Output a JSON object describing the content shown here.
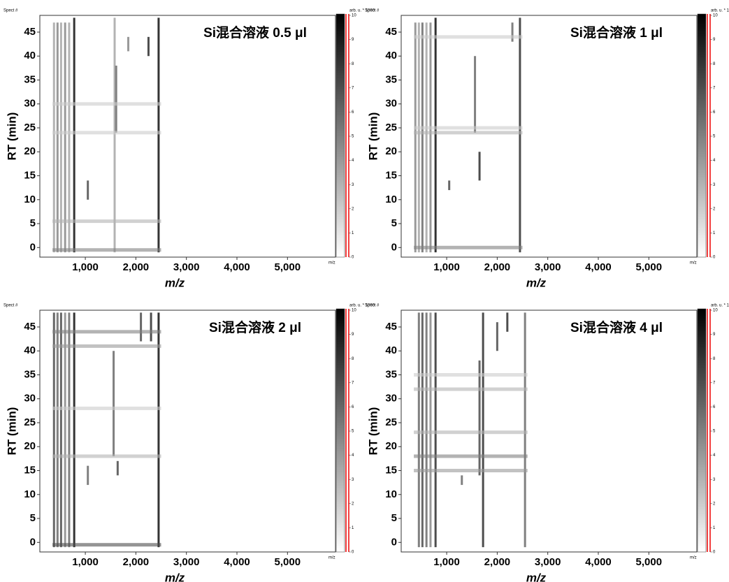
{
  "chart_data": [
    {
      "type": "heatmap",
      "title": "Si混合溶液 0.5 μl",
      "xlabel": "m/z",
      "ylabel": "RT (min)",
      "corner_label": "Spect #",
      "colorbar_label": "arb. u. * 1000",
      "colorbar_axis_label": "m/z",
      "xlim": [
        100,
        5950
      ],
      "ylim": [
        -2,
        48.5
      ],
      "clim": [
        0,
        10
      ],
      "xticks": [
        {
          "value": 1000,
          "label": "1,000"
        },
        {
          "value": 2000,
          "label": "2,000"
        },
        {
          "value": 3000,
          "label": "3,000"
        },
        {
          "value": 4000,
          "label": "4,000"
        },
        {
          "value": 5000,
          "label": "5,000"
        }
      ],
      "yticks": [
        0,
        5,
        10,
        15,
        20,
        25,
        30,
        35,
        40,
        45
      ],
      "cticks": [
        0,
        1,
        2,
        3,
        4,
        5,
        6,
        7,
        8,
        9,
        10
      ],
      "streaks": {
        "mz": [
          380,
          450,
          520,
          600,
          680,
          780,
          1580,
          1610,
          2450,
          1050,
          1850,
          2250
        ],
        "rt_from": [
          -1,
          -1,
          -1,
          -1,
          -1,
          -1,
          -1,
          24,
          -1,
          10,
          41,
          40
        ],
        "rt_to": [
          47,
          47,
          47,
          47,
          47,
          48,
          48,
          38,
          48,
          14,
          44,
          44
        ],
        "intensity": [
          3,
          4,
          3,
          4,
          3,
          8,
          3,
          5,
          8,
          6,
          4,
          7
        ]
      },
      "bands": {
        "rt": [
          -0.5,
          5.5,
          24,
          30
        ],
        "mz_from": [
          350,
          350,
          350,
          350
        ],
        "mz_to": [
          2500,
          2500,
          2500,
          2500
        ],
        "intensity": [
          5,
          3,
          2,
          2
        ]
      }
    },
    {
      "type": "heatmap",
      "title": "Si混合溶液 1 μl",
      "xlabel": "m/z",
      "ylabel": "RT (min)",
      "corner_label": "Spect #",
      "colorbar_label": "arb. u. * 1000",
      "colorbar_axis_label": "m/z",
      "xlim": [
        100,
        5950
      ],
      "ylim": [
        -2,
        48.5
      ],
      "clim": [
        0,
        10
      ],
      "xticks": [
        {
          "value": 1000,
          "label": "1,000"
        },
        {
          "value": 2000,
          "label": "2,000"
        },
        {
          "value": 3000,
          "label": "3,000"
        },
        {
          "value": 4000,
          "label": "4,000"
        },
        {
          "value": 5000,
          "label": "5,000"
        }
      ],
      "yticks": [
        0,
        5,
        10,
        15,
        20,
        25,
        30,
        35,
        40,
        45
      ],
      "cticks": [
        0,
        1,
        2,
        3,
        4,
        5,
        6,
        7,
        8,
        9,
        10
      ],
      "streaks": {
        "mz": [
          380,
          450,
          520,
          600,
          680,
          780,
          1560,
          1650,
          2450,
          1050,
          2300
        ],
        "rt_from": [
          -1,
          -1,
          -1,
          -1,
          -1,
          -1,
          24,
          14,
          -1,
          12,
          43
        ],
        "rt_to": [
          47,
          47,
          47,
          47,
          47,
          48,
          40,
          20,
          48,
          14,
          47
        ],
        "intensity": [
          4,
          3,
          5,
          3,
          4,
          8,
          5,
          7,
          7,
          6,
          5
        ]
      },
      "bands": {
        "rt": [
          0,
          24,
          25,
          44
        ],
        "mz_from": [
          350,
          350,
          350,
          350
        ],
        "mz_to": [
          2500,
          2500,
          2500,
          2500
        ],
        "intensity": [
          5,
          3,
          2,
          2
        ]
      }
    },
    {
      "type": "heatmap",
      "title": "Si混合溶液 2 μl",
      "xlabel": "m/z",
      "ylabel": "RT (min)",
      "corner_label": "Spect #",
      "colorbar_label": "arb. u. * 1000",
      "colorbar_axis_label": "m/z",
      "xlim": [
        100,
        5950
      ],
      "ylim": [
        -2,
        48.5
      ],
      "clim": [
        0,
        10
      ],
      "xticks": [
        {
          "value": 1000,
          "label": "1,000"
        },
        {
          "value": 2000,
          "label": "2,000"
        },
        {
          "value": 3000,
          "label": "3,000"
        },
        {
          "value": 4000,
          "label": "4,000"
        },
        {
          "value": 5000,
          "label": "5,000"
        }
      ],
      "yticks": [
        0,
        5,
        10,
        15,
        20,
        25,
        30,
        35,
        40,
        45
      ],
      "cticks": [
        0,
        1,
        2,
        3,
        4,
        5,
        6,
        7,
        8,
        9,
        10
      ],
      "streaks": {
        "mz": [
          380,
          450,
          520,
          600,
          680,
          780,
          1560,
          1640,
          2450,
          1050,
          2100,
          2300
        ],
        "rt_from": [
          -1,
          -1,
          -1,
          -1,
          -1,
          -1,
          18,
          14,
          -1,
          12,
          42,
          42
        ],
        "rt_to": [
          48,
          48,
          48,
          48,
          48,
          48,
          40,
          17,
          48,
          16,
          48,
          48
        ],
        "intensity": [
          6,
          5,
          6,
          4,
          5,
          8,
          5,
          6,
          8,
          5,
          6,
          7
        ]
      },
      "bands": {
        "rt": [
          -0.5,
          18,
          28,
          41,
          44
        ],
        "mz_from": [
          350,
          350,
          350,
          350,
          350
        ],
        "mz_to": [
          2500,
          2500,
          2500,
          2500,
          2500
        ],
        "intensity": [
          7,
          3,
          2,
          4,
          5
        ]
      }
    },
    {
      "type": "heatmap",
      "title": "Si混合溶液 4 μl",
      "xlabel": "m/z",
      "ylabel": "RT (min)",
      "corner_label": "Spect #",
      "colorbar_label": "arb. u. * 1000",
      "colorbar_axis_label": "m/z",
      "xlim": [
        100,
        5950
      ],
      "ylim": [
        -2,
        48.5
      ],
      "clim": [
        0,
        10
      ],
      "xticks": [
        {
          "value": 1000,
          "label": "1,000"
        },
        {
          "value": 2000,
          "label": "2,000"
        },
        {
          "value": 3000,
          "label": "3,000"
        },
        {
          "value": 4000,
          "label": "4,000"
        },
        {
          "value": 5000,
          "label": "5,000"
        }
      ],
      "yticks": [
        0,
        5,
        10,
        15,
        20,
        25,
        30,
        35,
        40,
        45
      ],
      "cticks": [
        0,
        1,
        2,
        3,
        4,
        5,
        6,
        7,
        8,
        9,
        10
      ],
      "streaks": {
        "mz": [
          450,
          520,
          600,
          680,
          780,
          1650,
          1720,
          2550,
          1300,
          2000,
          2200
        ],
        "rt_from": [
          -1,
          -1,
          -1,
          -1,
          -1,
          14,
          -1,
          -1,
          12,
          40,
          44
        ],
        "rt_to": [
          48,
          48,
          48,
          48,
          48,
          38,
          48,
          48,
          14,
          46,
          48
        ],
        "intensity": [
          5,
          6,
          5,
          4,
          7,
          6,
          7,
          5,
          5,
          6,
          7
        ]
      },
      "bands": {
        "rt": [
          15,
          18,
          23,
          32,
          35
        ],
        "mz_from": [
          350,
          350,
          350,
          350,
          350
        ],
        "mz_to": [
          2600,
          2600,
          2600,
          2600,
          2600
        ],
        "intensity": [
          4,
          5,
          3,
          3,
          2
        ]
      }
    }
  ]
}
